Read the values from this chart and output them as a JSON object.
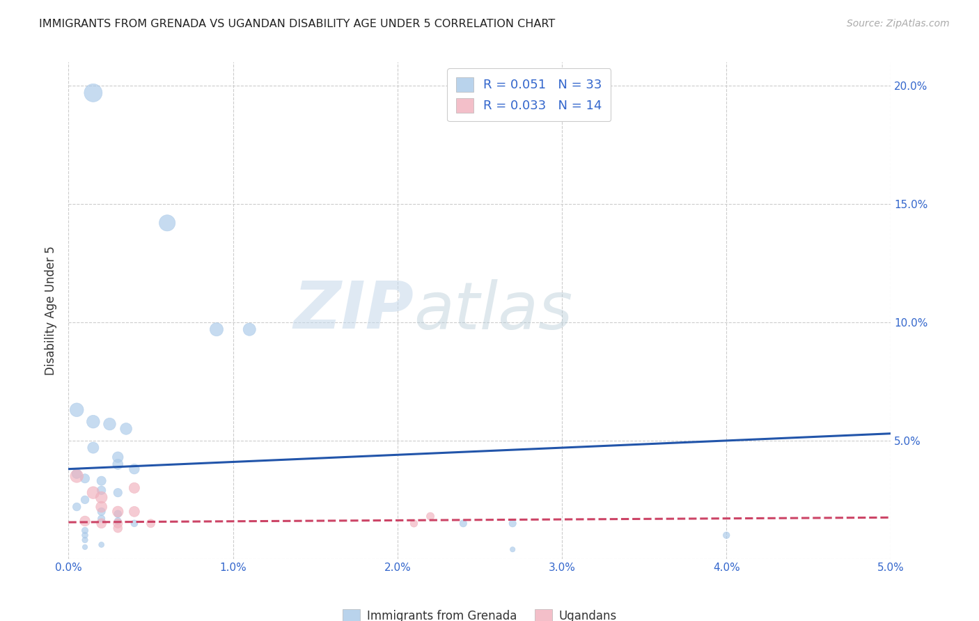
{
  "title": "IMMIGRANTS FROM GRENADA VS UGANDAN DISABILITY AGE UNDER 5 CORRELATION CHART",
  "source": "Source: ZipAtlas.com",
  "ylabel": "Disability Age Under 5",
  "xlim": [
    0.0,
    0.05
  ],
  "ylim": [
    0.0,
    0.21
  ],
  "xticks": [
    0.0,
    0.01,
    0.02,
    0.03,
    0.04,
    0.05
  ],
  "yticks": [
    0.0,
    0.05,
    0.1,
    0.15,
    0.2
  ],
  "xtick_labels": [
    "0.0%",
    "1.0%",
    "2.0%",
    "3.0%",
    "4.0%",
    "5.0%"
  ],
  "ytick_labels_right": [
    "",
    "5.0%",
    "10.0%",
    "15.0%",
    "20.0%"
  ],
  "background_color": "#ffffff",
  "grid_color": "#cccccc",
  "blue_color": "#a8c8e8",
  "pink_color": "#f0b0bc",
  "blue_line_color": "#2255aa",
  "pink_line_color": "#cc4466",
  "legend_label1": "Immigrants from Grenada",
  "legend_label2": "Ugandans",
  "watermark_zip": "ZIP",
  "watermark_atlas": "atlas",
  "blue_dots": [
    [
      0.0015,
      0.197
    ],
    [
      0.006,
      0.142
    ],
    [
      0.009,
      0.097
    ],
    [
      0.011,
      0.097
    ],
    [
      0.0005,
      0.063
    ],
    [
      0.0015,
      0.058
    ],
    [
      0.0025,
      0.057
    ],
    [
      0.0035,
      0.055
    ],
    [
      0.0015,
      0.047
    ],
    [
      0.003,
      0.043
    ],
    [
      0.003,
      0.04
    ],
    [
      0.004,
      0.038
    ],
    [
      0.0005,
      0.036
    ],
    [
      0.001,
      0.034
    ],
    [
      0.002,
      0.033
    ],
    [
      0.002,
      0.029
    ],
    [
      0.003,
      0.028
    ],
    [
      0.001,
      0.025
    ],
    [
      0.0005,
      0.022
    ],
    [
      0.002,
      0.02
    ],
    [
      0.003,
      0.019
    ],
    [
      0.002,
      0.017
    ],
    [
      0.003,
      0.016
    ],
    [
      0.004,
      0.015
    ],
    [
      0.001,
      0.012
    ],
    [
      0.001,
      0.01
    ],
    [
      0.001,
      0.008
    ],
    [
      0.002,
      0.006
    ],
    [
      0.001,
      0.005
    ],
    [
      0.024,
      0.015
    ],
    [
      0.027,
      0.015
    ],
    [
      0.027,
      0.004
    ],
    [
      0.04,
      0.01
    ]
  ],
  "pink_dots": [
    [
      0.0005,
      0.035
    ],
    [
      0.0015,
      0.028
    ],
    [
      0.002,
      0.026
    ],
    [
      0.002,
      0.022
    ],
    [
      0.003,
      0.02
    ],
    [
      0.004,
      0.02
    ],
    [
      0.001,
      0.016
    ],
    [
      0.002,
      0.015
    ],
    [
      0.003,
      0.015
    ],
    [
      0.003,
      0.013
    ],
    [
      0.004,
      0.03
    ],
    [
      0.005,
      0.015
    ],
    [
      0.021,
      0.015
    ],
    [
      0.022,
      0.018
    ]
  ],
  "blue_dot_sizes": [
    350,
    280,
    190,
    170,
    200,
    180,
    160,
    145,
    135,
    125,
    115,
    110,
    100,
    90,
    90,
    80,
    80,
    70,
    70,
    65,
    60,
    55,
    52,
    50,
    45,
    40,
    36,
    32,
    28,
    55,
    55,
    28,
    48
  ],
  "pink_dot_sizes": [
    180,
    160,
    145,
    130,
    125,
    115,
    110,
    100,
    92,
    85,
    120,
    75,
    58,
    65
  ],
  "blue_trendline_x": [
    0.0,
    0.05
  ],
  "blue_trendline_y": [
    0.038,
    0.053
  ],
  "pink_trendline_x": [
    0.0,
    0.05
  ],
  "pink_trendline_y": [
    0.0155,
    0.0175
  ]
}
